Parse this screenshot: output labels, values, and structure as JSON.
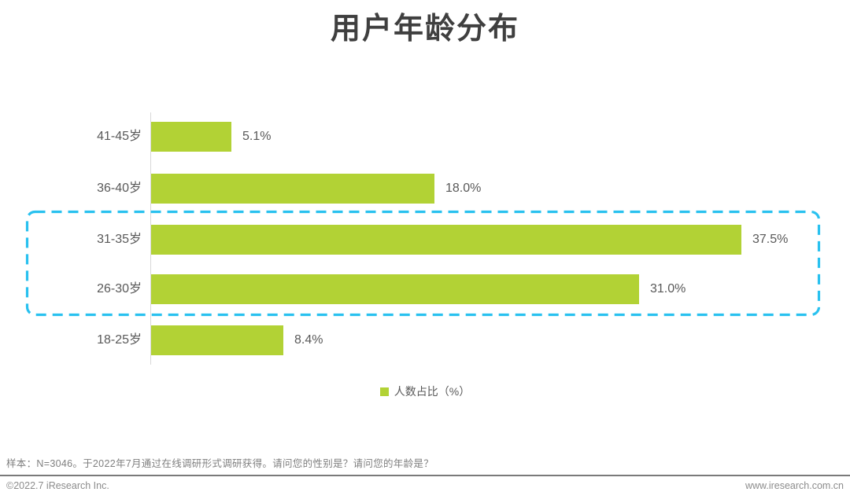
{
  "page": {
    "title": "用户年龄分布"
  },
  "chart_data": {
    "type": "bar",
    "orientation": "horizontal",
    "title": "用户年龄分布",
    "categories": [
      "41-45岁",
      "36-40岁",
      "31-35岁",
      "26-30岁",
      "18-25岁"
    ],
    "values": [
      5.1,
      18.0,
      37.5,
      31.0,
      8.4
    ],
    "value_labels": [
      "5.1%",
      "18.0%",
      "37.5%",
      "31.0%",
      "8.4%"
    ],
    "series_name": "人数占比（%）",
    "xlim": [
      0,
      40
    ],
    "grid": false,
    "legend_position": "bottom-center",
    "bar_color": "#b2d235",
    "label_color": "#595959",
    "highlight_box": {
      "categories": [
        "31-35岁",
        "26-30岁"
      ],
      "style": "dashed rounded rectangle",
      "color": "#29c1ef"
    }
  },
  "legend": {
    "label": "人数占比（%）",
    "swatch_color": "#b2d235"
  },
  "footer": {
    "sample_note": "样本：N=3046。于2022年7月通过在线调研形式调研获得。请问您的性别是？请问您的年龄是？",
    "copyright": "©2022.7 iResearch Inc.",
    "website": "www.iresearch.com.cn"
  }
}
